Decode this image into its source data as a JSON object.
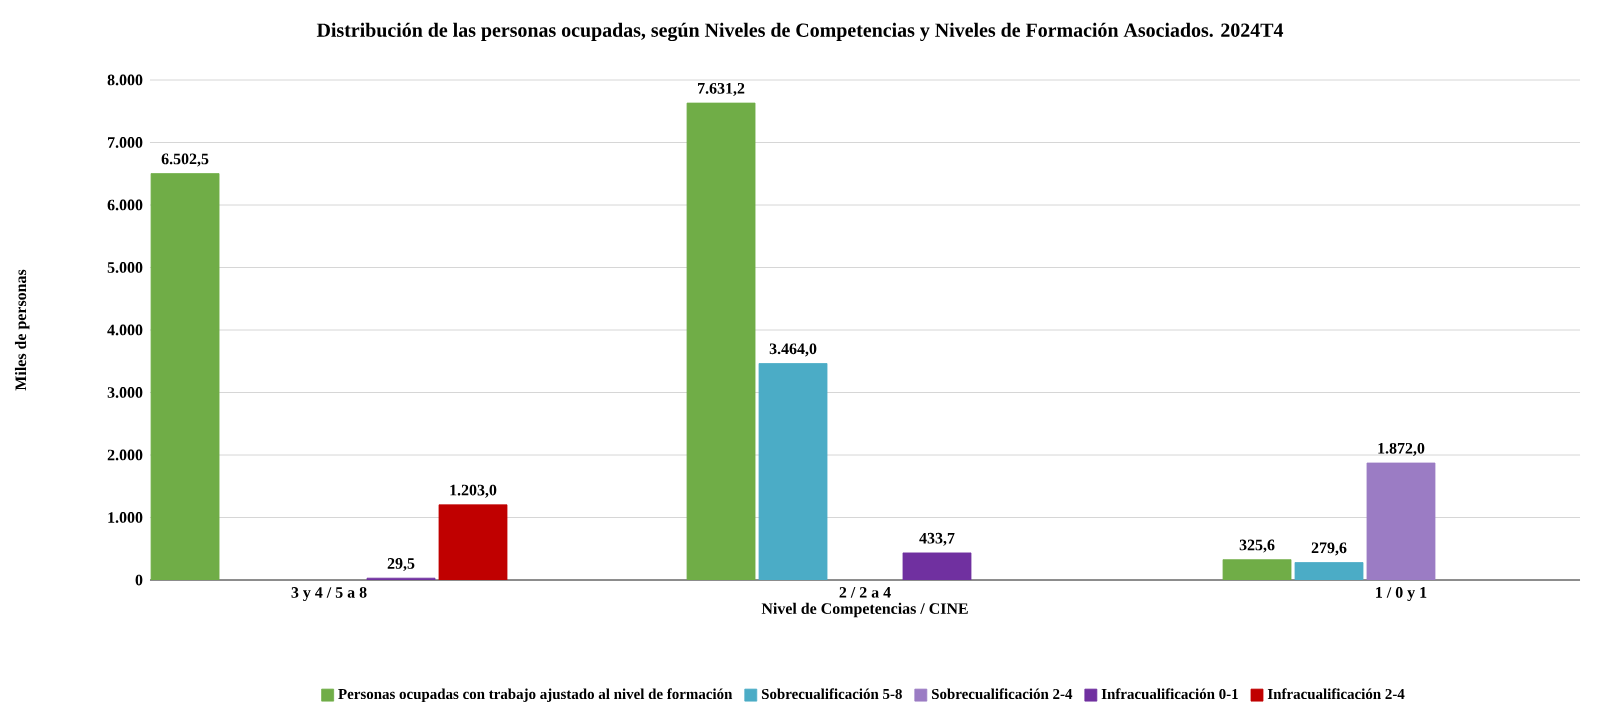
{
  "chart_data": {
    "type": "bar",
    "title": "Distribución de las personas ocupadas, según Niveles de Competencias y Niveles de Formación Asociados. 2024T4",
    "xlabel": "Nivel de Competencias / CINE",
    "ylabel": "Miles de personas",
    "categories": [
      "3 y 4 / 5 a 8",
      "2 / 2 a 4",
      "1 / 0 y 1"
    ],
    "series": [
      {
        "name": "Personas ocupadas con trabajo ajustado al nivel de formación",
        "color": "#70ad47",
        "values": [
          6502.5,
          7631.2,
          325.6
        ],
        "value_labels": [
          "6.502,5",
          "7.631,2",
          "325,6"
        ]
      },
      {
        "name": "Sobrecualificación 5-8",
        "color": "#4bacc6",
        "values": [
          null,
          3464.0,
          279.6
        ],
        "value_labels": [
          null,
          "3.464,0",
          "279,6"
        ]
      },
      {
        "name": "Sobrecualificación 2-4",
        "color": "#9b7cc4",
        "values": [
          null,
          null,
          1872.0
        ],
        "value_labels": [
          null,
          null,
          "1.872,0"
        ]
      },
      {
        "name": "Infracualificación 0-1",
        "color": "#7030a0",
        "values": [
          29.5,
          433.7,
          null
        ],
        "value_labels": [
          "29,5",
          "433,7",
          null
        ]
      },
      {
        "name": "Infracualificación 2-4",
        "color": "#c00000",
        "values": [
          1203.0,
          null,
          null
        ],
        "value_labels": [
          "1.203,0",
          null,
          null
        ]
      }
    ],
    "ylim": [
      0,
      8000
    ],
    "yticks": [
      {
        "value": 0,
        "label": "0"
      },
      {
        "value": 1000,
        "label": "1.000"
      },
      {
        "value": 2000,
        "label": "2.000"
      },
      {
        "value": 3000,
        "label": "3.000"
      },
      {
        "value": 4000,
        "label": "4.000"
      },
      {
        "value": 5000,
        "label": "5.000"
      },
      {
        "value": 6000,
        "label": "6.000"
      },
      {
        "value": 7000,
        "label": "7.000"
      },
      {
        "value": 8000,
        "label": "8.000"
      }
    ],
    "grid": "y",
    "legend": "bottom"
  }
}
